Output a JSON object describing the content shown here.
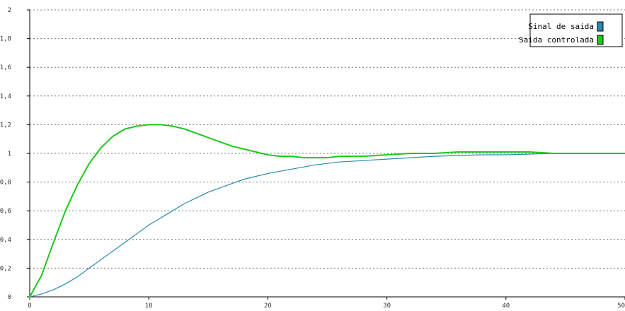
{
  "chart_data": {
    "type": "line",
    "title": "",
    "xlabel": "",
    "ylabel": "",
    "xlim": [
      0,
      50
    ],
    "ylim": [
      0,
      2
    ],
    "x_ticks": [
      "0",
      "10",
      "20",
      "30",
      "40",
      "50"
    ],
    "y_ticks": [
      "0",
      "0,2",
      "0,4",
      "0,6",
      "0,8",
      "1",
      "1,2",
      "1,4",
      "1,6",
      "1,8",
      "2"
    ],
    "grid": "horizontal dotted",
    "legend_position": "top-right",
    "series": [
      {
        "name": "Sinal de saida",
        "color": "#2a8ab0",
        "x": [
          0,
          1,
          2,
          3,
          4,
          5,
          6,
          7,
          8,
          9,
          10,
          11,
          12,
          13,
          14,
          15,
          16,
          17,
          18,
          19,
          20,
          22,
          24,
          26,
          28,
          30,
          32,
          34,
          36,
          38,
          40,
          42,
          44,
          46,
          48,
          50
        ],
        "y": [
          0,
          0.02,
          0.05,
          0.09,
          0.14,
          0.2,
          0.26,
          0.32,
          0.38,
          0.44,
          0.5,
          0.55,
          0.6,
          0.65,
          0.69,
          0.73,
          0.76,
          0.79,
          0.82,
          0.84,
          0.86,
          0.89,
          0.92,
          0.94,
          0.95,
          0.96,
          0.97,
          0.98,
          0.985,
          0.99,
          0.99,
          0.995,
          1.0,
          1.0,
          1.0,
          1.0
        ]
      },
      {
        "name": "Saida controlada",
        "color": "#1ec81e",
        "x": [
          0,
          1,
          2,
          3,
          4,
          5,
          6,
          7,
          8,
          9,
          10,
          11,
          12,
          13,
          14,
          15,
          16,
          17,
          18,
          19,
          20,
          21,
          22,
          23,
          24,
          25,
          26,
          28,
          30,
          32,
          34,
          36,
          38,
          40,
          42,
          44,
          46,
          48,
          50
        ],
        "y": [
          0,
          0.15,
          0.38,
          0.6,
          0.78,
          0.93,
          1.04,
          1.12,
          1.17,
          1.19,
          1.2,
          1.2,
          1.19,
          1.17,
          1.14,
          1.11,
          1.08,
          1.05,
          1.03,
          1.01,
          0.99,
          0.98,
          0.98,
          0.97,
          0.97,
          0.97,
          0.98,
          0.98,
          0.99,
          1.0,
          1.0,
          1.01,
          1.01,
          1.01,
          1.01,
          1.0,
          1.0,
          1.0,
          1.0
        ]
      }
    ]
  }
}
